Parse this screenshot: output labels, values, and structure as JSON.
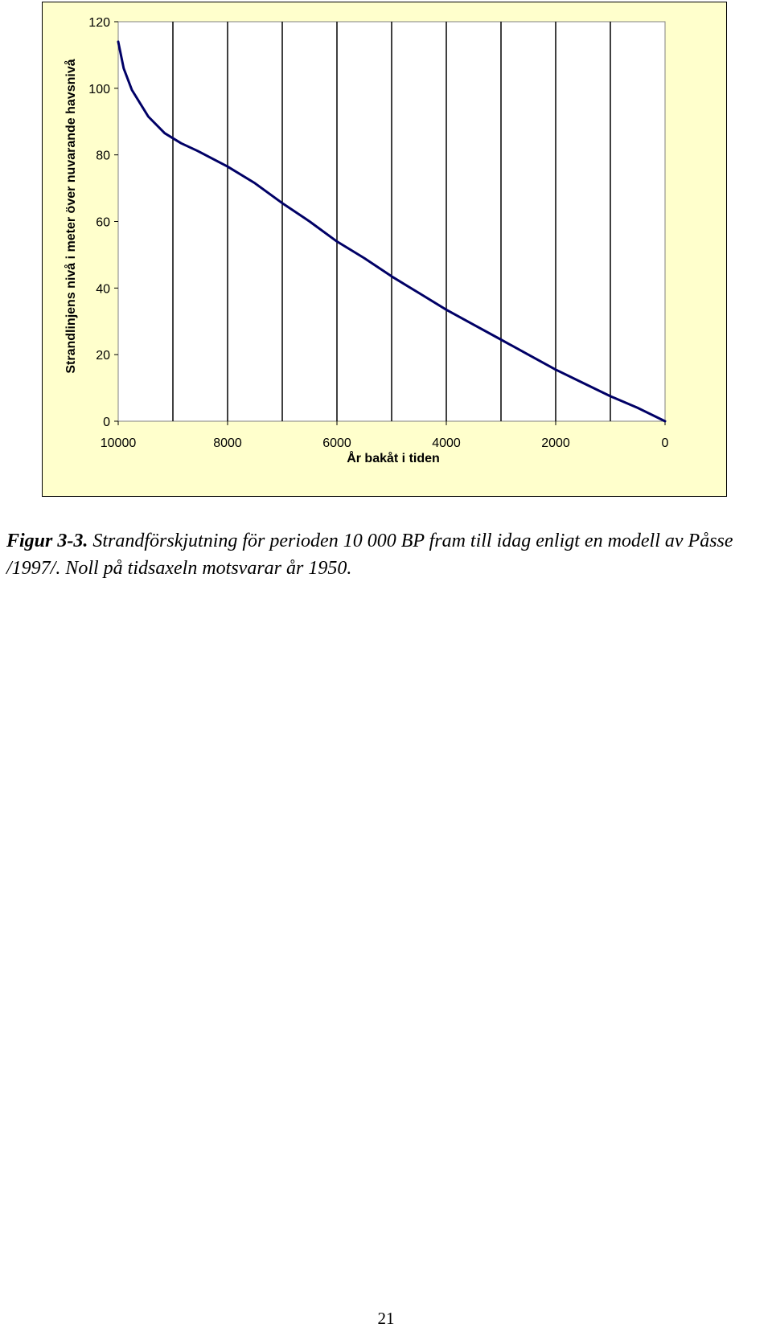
{
  "chart_data": {
    "type": "line",
    "title": "",
    "xlabel": "År bakåt i tiden",
    "ylabel": "Strandlinjens nivå i meter över nuvarande havsnivå",
    "x_ticks": [
      "10000",
      "8000",
      "6000",
      "4000",
      "2000",
      "0"
    ],
    "y_ticks": [
      "0",
      "20",
      "40",
      "60",
      "80",
      "100",
      "120"
    ],
    "xlim": [
      10000,
      0
    ],
    "ylim": [
      0,
      120
    ],
    "x_grid_step": 1000,
    "grid": "vertical",
    "line_color": "#000066",
    "background_color": "#ffffcc",
    "series": [
      {
        "x": [
          10000,
          9900,
          9750,
          9450,
          9150,
          8850,
          8550,
          8000,
          7500,
          7000,
          6500,
          6000,
          5500,
          5000,
          4500,
          4000,
          3500,
          3000,
          2500,
          2000,
          1500,
          1000,
          500,
          0
        ],
        "y": [
          114,
          106,
          99.5,
          91.5,
          86.5,
          83.5,
          81.2,
          76.5,
          71.5,
          65.5,
          60,
          54,
          49,
          43.5,
          38.5,
          33.5,
          29,
          24.5,
          20,
          15.5,
          11.5,
          7.5,
          4,
          0
        ]
      }
    ]
  },
  "caption": {
    "label": "Figur 3-3.",
    "text": "Strandförskjutning för perioden 10 000 BP fram till idag enligt en modell av Påsse /1997/. Noll på tidsaxeln motsvarar år 1950."
  },
  "page_number": "21"
}
